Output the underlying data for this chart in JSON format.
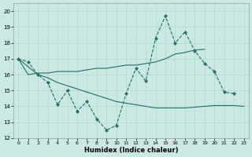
{
  "xlabel": "Humidex (Indice chaleur)",
  "bg_color": "#cce8e4",
  "line_color": "#1e7068",
  "grid_color": "#b0d8d0",
  "xlim": [
    -0.5,
    23.5
  ],
  "ylim": [
    12,
    20.5
  ],
  "xticks": [
    0,
    1,
    2,
    3,
    4,
    5,
    6,
    7,
    8,
    9,
    10,
    11,
    12,
    13,
    14,
    15,
    16,
    17,
    18,
    19,
    20,
    21,
    22,
    23
  ],
  "yticks": [
    12,
    13,
    14,
    15,
    16,
    17,
    18,
    19,
    20
  ],
  "s1_x": [
    0,
    1,
    2,
    3,
    4,
    5,
    6,
    7,
    8,
    9,
    10,
    11,
    12,
    13,
    14,
    15,
    16,
    17,
    18,
    19,
    20,
    21,
    22
  ],
  "s1_y": [
    17.0,
    16.8,
    16.0,
    15.5,
    14.1,
    15.0,
    13.7,
    14.3,
    13.2,
    12.5,
    12.8,
    14.8,
    16.4,
    15.6,
    18.3,
    19.7,
    18.0,
    18.7,
    17.5,
    16.7,
    16.2,
    14.9,
    14.8
  ],
  "s2_x": [
    0,
    1,
    2,
    3,
    4,
    5,
    6,
    7,
    8,
    9,
    10,
    11,
    12,
    13,
    14,
    15,
    16,
    17,
    18,
    19
  ],
  "s2_y": [
    17.0,
    16.0,
    16.1,
    16.1,
    16.2,
    16.2,
    16.2,
    16.3,
    16.4,
    16.4,
    16.5,
    16.6,
    16.6,
    16.7,
    16.8,
    17.0,
    17.3,
    17.4,
    17.55,
    17.6
  ],
  "s3_x": [
    0,
    1,
    2,
    3,
    4,
    5,
    6,
    7,
    8,
    9,
    10,
    11,
    12,
    13,
    14,
    15,
    16,
    17,
    18,
    19,
    20,
    21,
    22,
    23
  ],
  "s3_y": [
    17.0,
    16.5,
    16.0,
    15.8,
    15.5,
    15.3,
    15.1,
    14.9,
    14.7,
    14.5,
    14.3,
    14.2,
    14.1,
    14.0,
    13.9,
    13.9,
    13.9,
    13.9,
    13.95,
    14.0,
    14.05,
    14.05,
    14.05,
    14.0
  ]
}
